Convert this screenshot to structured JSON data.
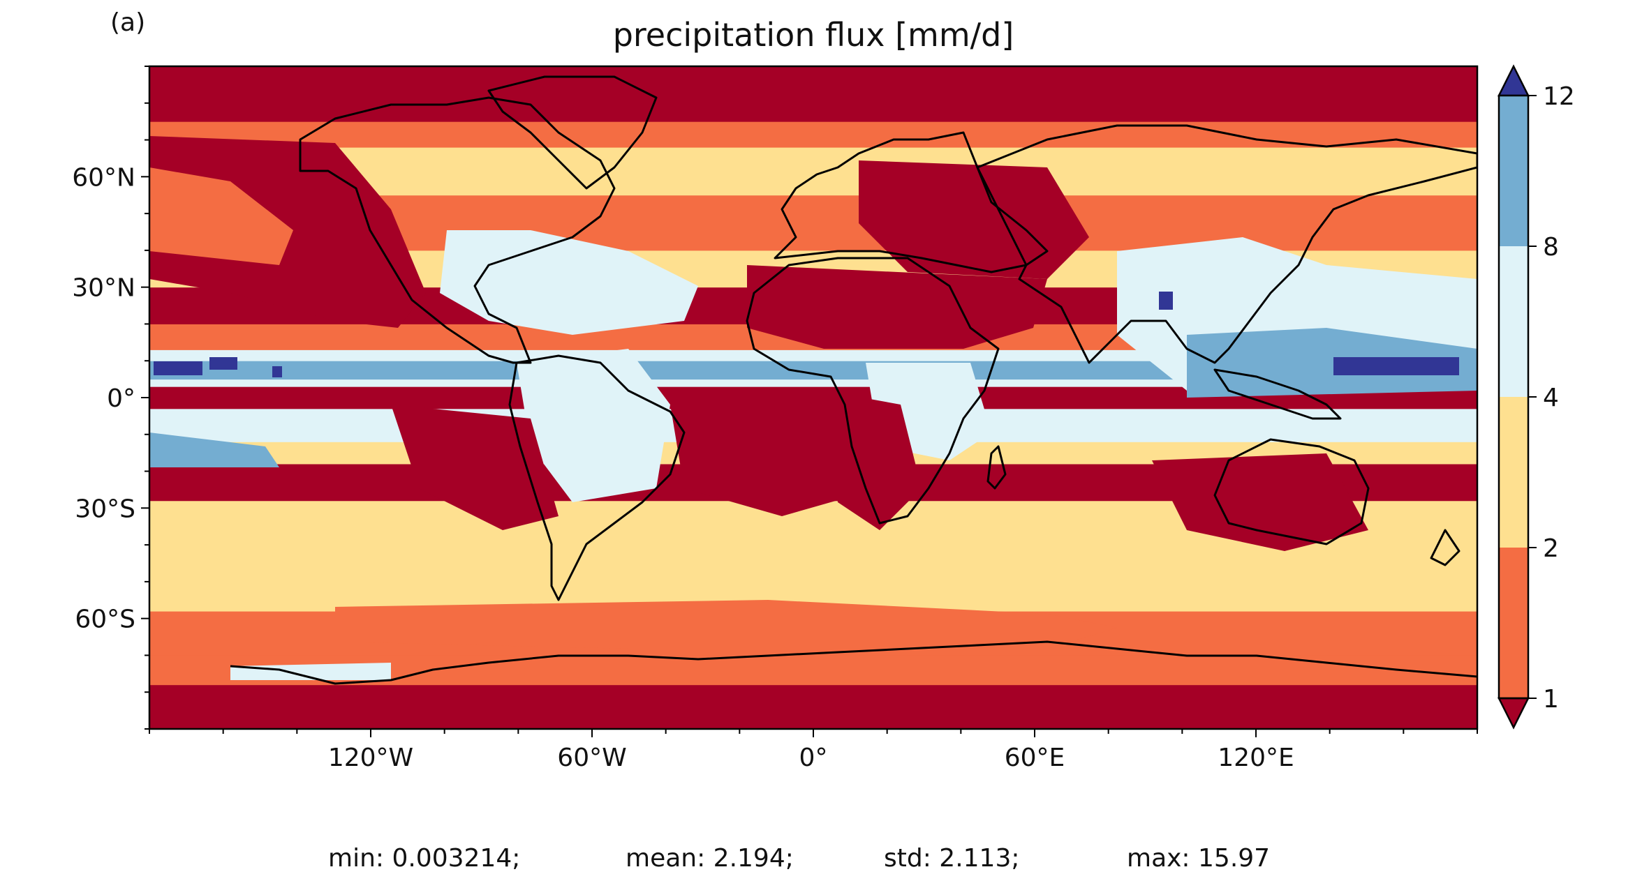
{
  "figure": {
    "panel_label": "(a)",
    "title": "precipitation flux [mm/d]"
  },
  "map": {
    "projection": "plate-carree",
    "lon_range": [
      -180,
      180
    ],
    "lat_range": [
      -90,
      90
    ],
    "x_ticks": [
      "120°W",
      "60°W",
      "0°",
      "60°E",
      "120°E"
    ],
    "y_ticks": [
      "60°N",
      "30°N",
      "0°",
      "30°S",
      "60°S"
    ],
    "coastlines": true
  },
  "colorbar": {
    "ticks": [
      "12",
      "8",
      "4",
      "2",
      "1"
    ],
    "extend": "both",
    "colors": {
      "over": "#313695",
      "8-12": "#74add1",
      "4-8": "#e0f3f8",
      "2-4": "#fee090",
      "1-2": "#f46d43",
      "under": "#a50026"
    }
  },
  "stats": {
    "min": "min: 0.003214;",
    "mean": "mean: 2.194;",
    "std": "std: 2.113;",
    "max": "max: 15.97"
  },
  "chart_data": {
    "type": "heatmap",
    "title": "precipitation flux [mm/d]",
    "xlim": [
      -180,
      180
    ],
    "ylim": [
      -90,
      90
    ],
    "levels": [
      1,
      2,
      4,
      8,
      12
    ],
    "summary": {
      "min": 0.003214,
      "mean": 2.194,
      "std": 2.113,
      "max": 15.97
    },
    "bands": [
      {
        "lat": [
          -90,
          -78
        ],
        "value": 0.5
      },
      {
        "lat": [
          -78,
          -70
        ],
        "value": 1.5
      },
      {
        "lat": [
          -70,
          -58
        ],
        "value": 1.5
      },
      {
        "lat": [
          -58,
          -38
        ],
        "value": 3.0
      },
      {
        "lat": [
          -38,
          -28
        ],
        "value": 3.0
      },
      {
        "lat": [
          -28,
          -18
        ],
        "value": 0.5
      },
      {
        "lat": [
          -18,
          -12
        ],
        "value": 3.0
      },
      {
        "lat": [
          -12,
          -3
        ],
        "value": 5.0
      },
      {
        "lat": [
          -3,
          3
        ],
        "value": 0.5
      },
      {
        "lat": [
          3,
          5
        ],
        "value": 5.0
      },
      {
        "lat": [
          5,
          10
        ],
        "value": 9.0
      },
      {
        "lat": [
          10,
          13
        ],
        "value": 5.0
      },
      {
        "lat": [
          13,
          20
        ],
        "value": 1.5
      },
      {
        "lat": [
          20,
          30
        ],
        "value": 0.5
      },
      {
        "lat": [
          30,
          40
        ],
        "value": 3.0
      },
      {
        "lat": [
          40,
          55
        ],
        "value": 1.5
      },
      {
        "lat": [
          55,
          68
        ],
        "value": 3.0
      },
      {
        "lat": [
          68,
          75
        ],
        "value": 1.5
      },
      {
        "lat": [
          75,
          90
        ],
        "value": 0.5
      }
    ]
  }
}
